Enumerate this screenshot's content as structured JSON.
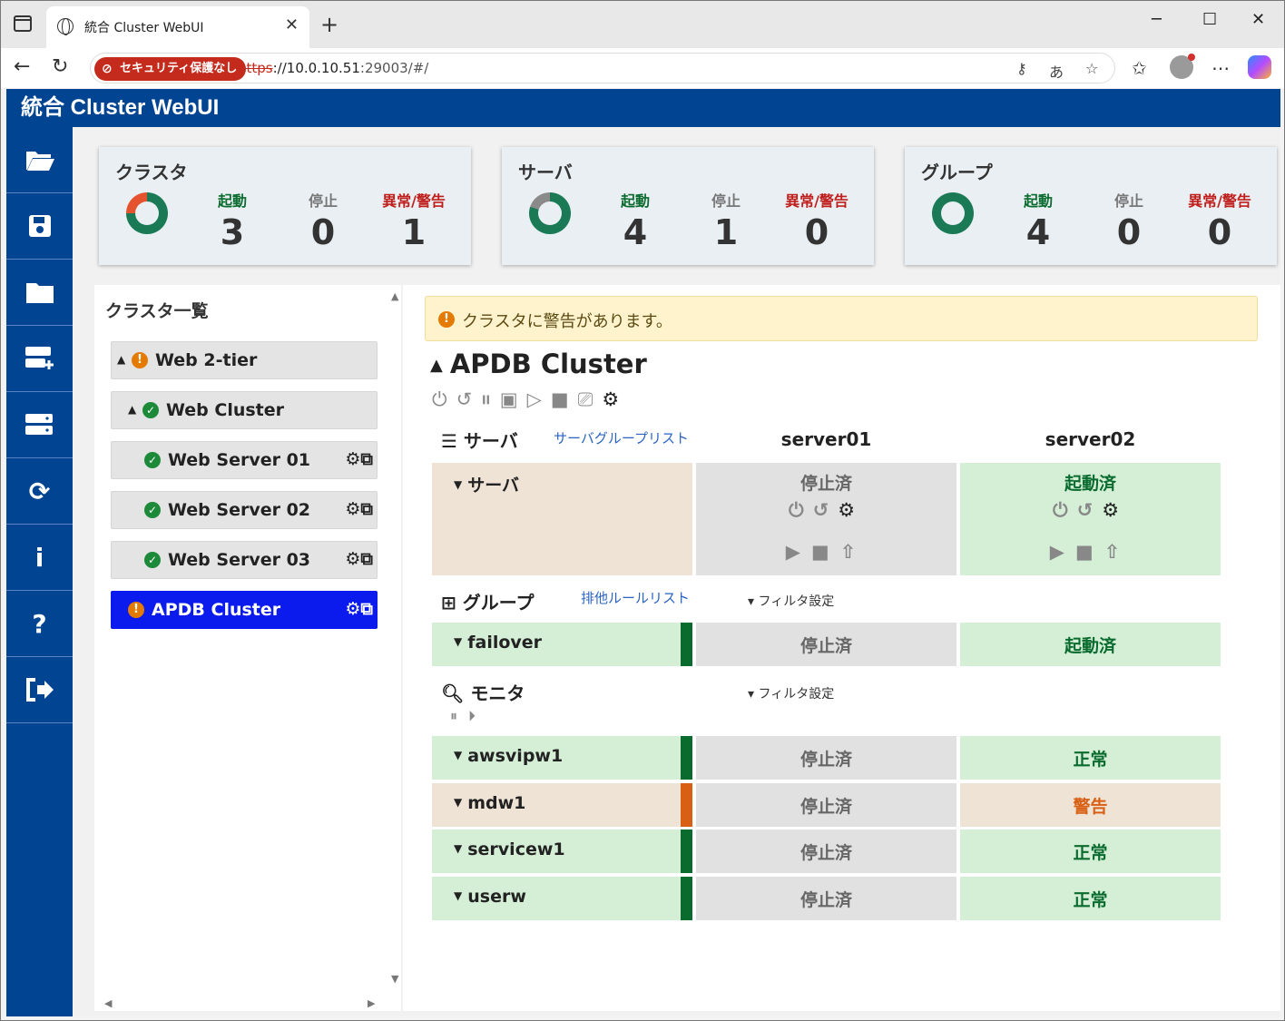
{
  "browser": {
    "tab_title": "統合 Cluster WebUI",
    "security_label": "セキュリティ保護なし",
    "url_proto": "https",
    "url_host": "://10.0.10.51",
    "url_rest": ":29003/#/"
  },
  "app": {
    "title": "統合 Cluster WebUI"
  },
  "summary": {
    "cluster": {
      "title": "クラスタ",
      "running_label": "起動",
      "running": "3",
      "stopped_label": "停止",
      "stopped": "0",
      "error_label": "異常/警告",
      "error": "1"
    },
    "server": {
      "title": "サーバ",
      "running_label": "起動",
      "running": "4",
      "stopped_label": "停止",
      "stopped": "1",
      "error_label": "異常/警告",
      "error": "0"
    },
    "group": {
      "title": "グループ",
      "running_label": "起動",
      "running": "4",
      "stopped_label": "停止",
      "stopped": "0",
      "error_label": "異常/警告",
      "error": "0"
    }
  },
  "cluster_list": {
    "title": "クラスタ一覧",
    "items": [
      {
        "label": "Web 2-tier"
      },
      {
        "label": "Web Cluster"
      },
      {
        "label": "Web Server 01"
      },
      {
        "label": "Web Server 02"
      },
      {
        "label": "Web Server 03"
      },
      {
        "label": "APDB Cluster"
      }
    ]
  },
  "detail": {
    "alert": "クラスタに警告があります。",
    "cluster_name": "APDB Cluster",
    "servers_section": "サーバ",
    "server_group_link": "サーバグループリスト",
    "server_names": [
      "server01",
      "server02"
    ],
    "server_row_label": "サーバ",
    "server_states": [
      "停止済",
      "起動済"
    ],
    "groups_section": "グループ",
    "exclusion_link": "排他ルールリスト",
    "filter_label": "フィルタ設定",
    "groups": [
      {
        "name": "failover",
        "states": [
          "停止済",
          "起動済"
        ]
      }
    ],
    "monitors_section": "モニタ",
    "monitors": [
      {
        "name": "awsvipw1",
        "states": [
          "停止済",
          "正常"
        ]
      },
      {
        "name": "mdw1",
        "states": [
          "停止済",
          "警告"
        ]
      },
      {
        "name": "servicew1",
        "states": [
          "停止済",
          "正常"
        ]
      },
      {
        "name": "userw",
        "states": [
          "停止済",
          "正常"
        ]
      }
    ]
  },
  "colors": {
    "header_blue": "#004492",
    "selected_blue": "#0b1aed",
    "ok_green": "#1d8a3a",
    "warn_orange": "#e57a00",
    "cell_green": "#d5efd7",
    "cell_gray": "#e1e1e1",
    "cell_beige": "#efe3d5"
  },
  "icons": [
    "folder-open-icon",
    "save-icon",
    "folder-icon",
    "server-add-icon",
    "server-list-icon",
    "refresh-icon",
    "info-icon",
    "help-icon",
    "logout-icon"
  ]
}
